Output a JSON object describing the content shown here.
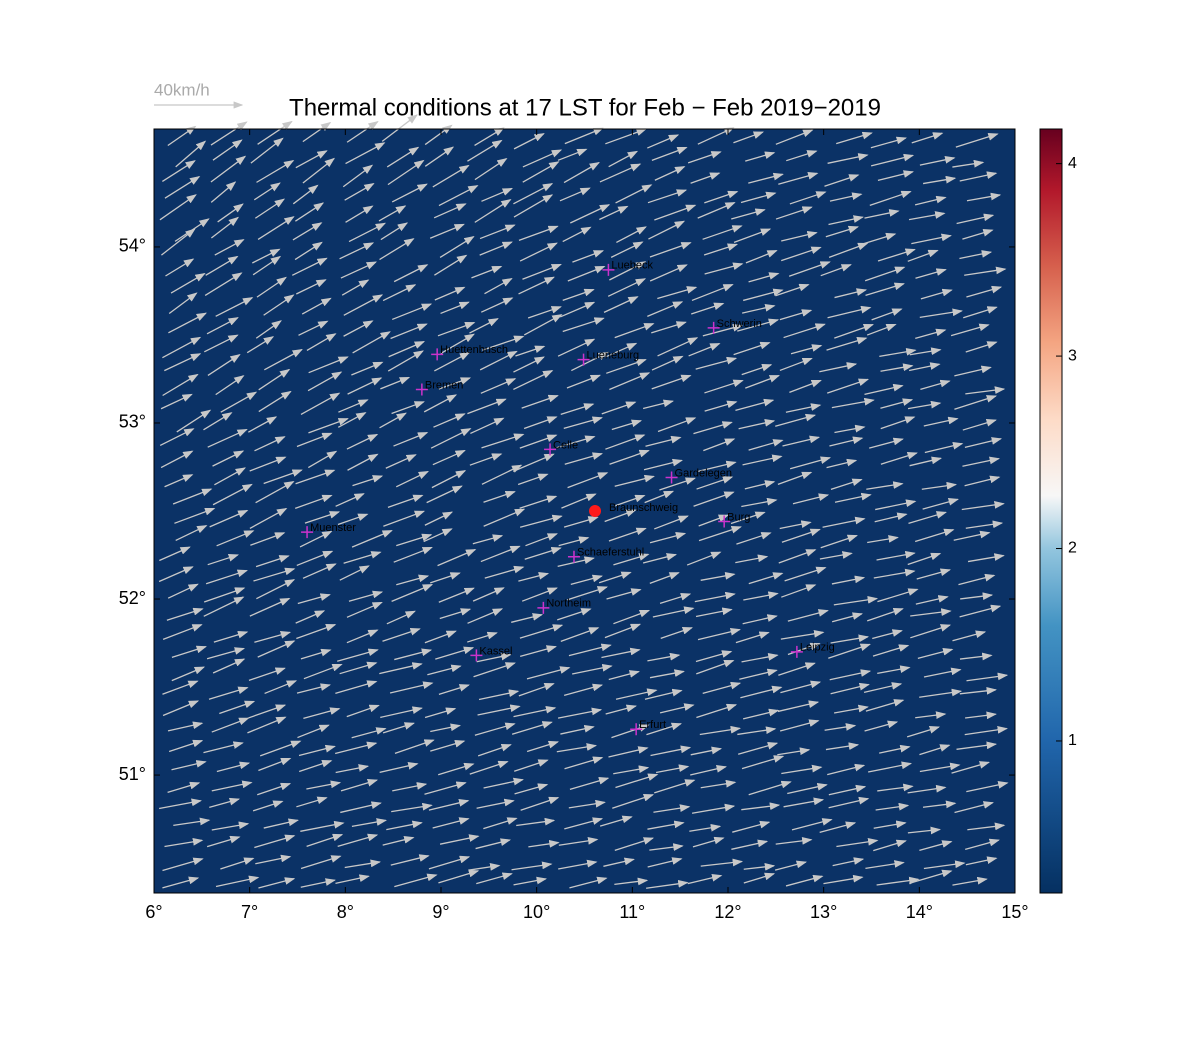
{
  "chart_data": {
    "type": "map",
    "title": "Thermal conditions at 17 LST for Feb − Feb  2019−2019",
    "vector_legend": "40km/h",
    "xlim": [
      6,
      15
    ],
    "ylim": [
      50.33,
      54.67
    ],
    "xticks": [
      {
        "value": 6,
        "label": "6°"
      },
      {
        "value": 7,
        "label": "7°"
      },
      {
        "value": 8,
        "label": "8°"
      },
      {
        "value": 9,
        "label": "9°"
      },
      {
        "value": 10,
        "label": "10°"
      },
      {
        "value": 11,
        "label": "11°"
      },
      {
        "value": 12,
        "label": "12°"
      },
      {
        "value": 13,
        "label": "13°"
      },
      {
        "value": 14,
        "label": "14°"
      },
      {
        "value": 15,
        "label": "15°"
      }
    ],
    "yticks": [
      {
        "value": 51,
        "label": "51°"
      },
      {
        "value": 52,
        "label": "52°"
      },
      {
        "value": 53,
        "label": "53°"
      },
      {
        "value": 54,
        "label": "54°"
      }
    ],
    "background_color": "#0b3266",
    "colorbar": {
      "lim": [
        0.21,
        4.18
      ],
      "ticks": [
        1,
        2,
        3,
        4
      ]
    },
    "cities": {
      "color": "#cc33cc",
      "names": [
        "Luebeck",
        "Schwerin",
        "Huettenbusch",
        "Lueneburg",
        "Bremen",
        "Celle",
        "Gardelegen",
        "Burg",
        "Muenster",
        "Schaeferstuhl",
        "Northeim",
        "Kassel",
        "Leipzig",
        "Erfurt"
      ],
      "lon": [
        10.75,
        11.85,
        8.96,
        10.49,
        8.8,
        10.14,
        11.41,
        11.96,
        7.6,
        10.39,
        10.07,
        9.37,
        12.72,
        11.04
      ],
      "lat": [
        53.87,
        53.54,
        53.39,
        53.36,
        53.19,
        52.85,
        52.69,
        52.44,
        52.38,
        52.24,
        51.95,
        51.68,
        51.7,
        51.26
      ]
    },
    "highlight": {
      "name": "Braunschweig",
      "lon": 10.61,
      "lat": 52.5,
      "color": "#ff1a1a"
    }
  }
}
